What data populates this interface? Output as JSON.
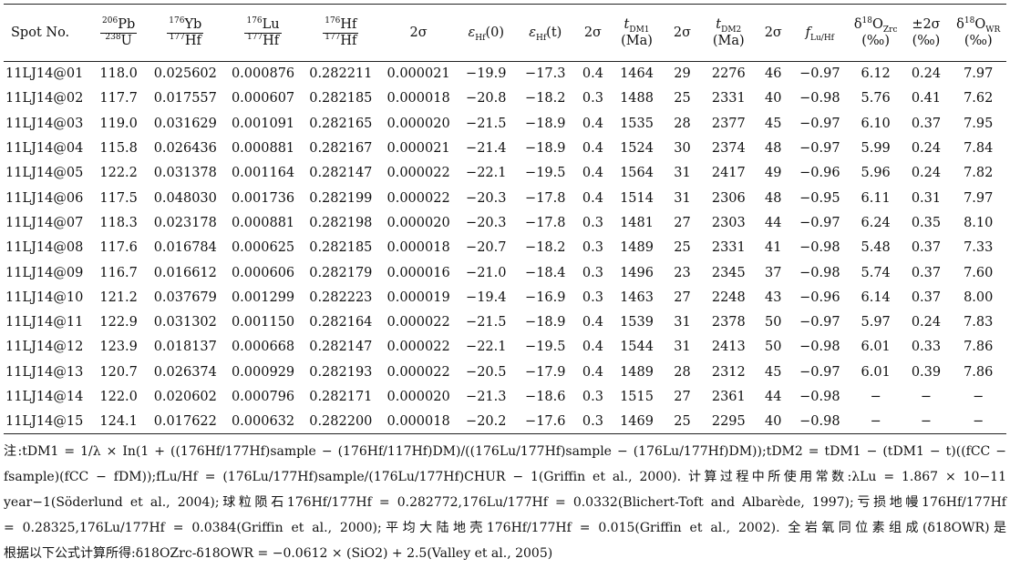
{
  "headers": {
    "spot": "Spot No.",
    "pb": {
      "n_mass": "206",
      "n_el": "Pb",
      "d_mass": "238",
      "d_el": "U"
    },
    "yb": {
      "n_mass": "176",
      "n_el": "Yb",
      "d_mass": "177",
      "d_el": "Hf"
    },
    "lu": {
      "n_mass": "176",
      "n_el": "Lu",
      "d_mass": "177",
      "d_el": "Hf"
    },
    "hf": {
      "n_mass": "176",
      "n_el": "Hf",
      "d_mass": "177",
      "d_el": "Hf"
    },
    "two_sigma": "2σ",
    "ehf0": {
      "sym": "ε",
      "sub": "Hf",
      "arg": "(0)"
    },
    "ehft": {
      "sym": "ε",
      "sub": "Hf",
      "arg": "(t)"
    },
    "tdm1": {
      "sym": "t",
      "sub": "DM1",
      "unit": "(Ma)"
    },
    "tdm2": {
      "sym": "t",
      "sub": "DM2",
      "unit": "(Ma)"
    },
    "flu": {
      "sym": "f",
      "sub": "Lu/Hf"
    },
    "d18ozrc": {
      "pre": "δ",
      "mass": "18",
      "el": "O",
      "sub": "Zrc",
      "unit": "(‰)"
    },
    "pm2s": {
      "top": "±2σ",
      "unit": "(‰)"
    },
    "d18owr": {
      "pre": "δ",
      "mass": "18",
      "el": "O",
      "sub": "WR",
      "unit": "(‰)"
    }
  },
  "rows": [
    [
      "11LJ14@01",
      "118.0",
      "0.025602",
      "0.000876",
      "0.282211",
      "0.000021",
      "−19.9",
      "−17.3",
      "0.4",
      "1464",
      "29",
      "2276",
      "46",
      "−0.97",
      "6.12",
      "0.24",
      "7.97"
    ],
    [
      "11LJ14@02",
      "117.7",
      "0.017557",
      "0.000607",
      "0.282185",
      "0.000018",
      "−20.8",
      "−18.2",
      "0.3",
      "1488",
      "25",
      "2331",
      "40",
      "−0.98",
      "5.76",
      "0.41",
      "7.62"
    ],
    [
      "11LJ14@03",
      "119.0",
      "0.031629",
      "0.001091",
      "0.282165",
      "0.000020",
      "−21.5",
      "−18.9",
      "0.4",
      "1535",
      "28",
      "2377",
      "45",
      "−0.97",
      "6.10",
      "0.37",
      "7.95"
    ],
    [
      "11LJ14@04",
      "115.8",
      "0.026436",
      "0.000881",
      "0.282167",
      "0.000021",
      "−21.4",
      "−18.9",
      "0.4",
      "1524",
      "30",
      "2374",
      "48",
      "−0.97",
      "5.99",
      "0.24",
      "7.84"
    ],
    [
      "11LJ14@05",
      "122.2",
      "0.031378",
      "0.001164",
      "0.282147",
      "0.000022",
      "−22.1",
      "−19.5",
      "0.4",
      "1564",
      "31",
      "2417",
      "49",
      "−0.96",
      "5.96",
      "0.24",
      "7.82"
    ],
    [
      "11LJ14@06",
      "117.5",
      "0.048030",
      "0.001736",
      "0.282199",
      "0.000022",
      "−20.3",
      "−17.8",
      "0.4",
      "1514",
      "31",
      "2306",
      "48",
      "−0.95",
      "6.11",
      "0.31",
      "7.97"
    ],
    [
      "11LJ14@07",
      "118.3",
      "0.023178",
      "0.000881",
      "0.282198",
      "0.000020",
      "−20.3",
      "−17.8",
      "0.3",
      "1481",
      "27",
      "2303",
      "44",
      "−0.97",
      "6.24",
      "0.35",
      "8.10"
    ],
    [
      "11LJ14@08",
      "117.6",
      "0.016784",
      "0.000625",
      "0.282185",
      "0.000018",
      "−20.7",
      "−18.2",
      "0.3",
      "1489",
      "25",
      "2331",
      "41",
      "−0.98",
      "5.48",
      "0.37",
      "7.33"
    ],
    [
      "11LJ14@09",
      "116.7",
      "0.016612",
      "0.000606",
      "0.282179",
      "0.000016",
      "−21.0",
      "−18.4",
      "0.3",
      "1496",
      "23",
      "2345",
      "37",
      "−0.98",
      "5.74",
      "0.37",
      "7.60"
    ],
    [
      "11LJ14@10",
      "121.2",
      "0.037679",
      "0.001299",
      "0.282223",
      "0.000019",
      "−19.4",
      "−16.9",
      "0.3",
      "1463",
      "27",
      "2248",
      "43",
      "−0.96",
      "6.14",
      "0.37",
      "8.00"
    ],
    [
      "11LJ14@11",
      "122.9",
      "0.031302",
      "0.001150",
      "0.282164",
      "0.000022",
      "−21.5",
      "−18.9",
      "0.4",
      "1539",
      "31",
      "2378",
      "50",
      "−0.97",
      "5.97",
      "0.24",
      "7.83"
    ],
    [
      "11LJ14@12",
      "123.9",
      "0.018137",
      "0.000668",
      "0.282147",
      "0.000022",
      "−22.1",
      "−19.5",
      "0.4",
      "1544",
      "31",
      "2413",
      "50",
      "−0.98",
      "6.01",
      "0.33",
      "7.86"
    ],
    [
      "11LJ14@13",
      "120.7",
      "0.026374",
      "0.000929",
      "0.282193",
      "0.000022",
      "−20.5",
      "−17.9",
      "0.4",
      "1489",
      "28",
      "2312",
      "45",
      "−0.97",
      "6.01",
      "0.39",
      "7.86"
    ],
    [
      "11LJ14@14",
      "122.0",
      "0.020602",
      "0.000796",
      "0.282171",
      "0.000020",
      "−21.3",
      "−18.6",
      "0.3",
      "1515",
      "27",
      "2361",
      "44",
      "−0.98",
      "−",
      "−",
      "−"
    ],
    [
      "11LJ14@15",
      "124.1",
      "0.017622",
      "0.000632",
      "0.282200",
      "0.000018",
      "−20.2",
      "−17.6",
      "0.3",
      "1469",
      "25",
      "2295",
      "40",
      "−0.98",
      "−",
      "−",
      "−"
    ]
  ],
  "notes": [
    "注:tDM1 = 1/λ × In(1 + ((176Hf/177Hf)sample − (176Hf/117Hf)DM)/((176Lu/177Hf)sample − (176Lu/177Hf)DM));tDM2 = tDM1 − (tDM1 − t)((fCC −",
    "fsample)(fCC − fDM));fLu/Hf = (176Lu/177Hf)sample/(176Lu/177Hf)CHUR − 1(Griffin et al., 2000). 计算过程中所使用常数:λLu = 1.867 × 10−11",
    "year−1(Söderlund et al., 2004);球粒陨石176Hf/177Hf = 0.282772,176Lu/177Hf = 0.0332(Blichert-Toft and Albarède, 1997);亏损地幔176Hf/177Hf",
    "= 0.28325,176Lu/177Hf = 0.0384(Griffin et al., 2000);平均大陆地壳176Hf/177Hf = 0.015(Griffin et al., 2002). 全岩氧同位素组成(δ18OWR)是",
    "根据以下公式计算所得:δ18OZrc-δ18OWR = −0.0612 × (SiO2) + 2.5(Valley et al., 2005)"
  ]
}
